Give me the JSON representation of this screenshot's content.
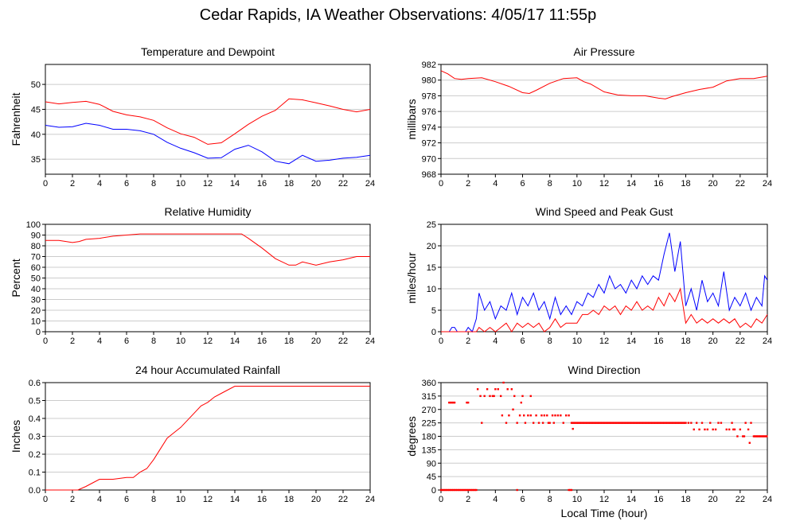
{
  "page": {
    "title": "Cedar Rapids, IA Weather Observations: 4/05/17 11:55p"
  },
  "colors": {
    "red": "#ff0000",
    "blue": "#0000ff",
    "grid": "#cccccc",
    "frame": "#000000"
  },
  "chart_data": [
    {
      "id": "temp",
      "type": "line",
      "title": "Temperature and Dewpoint",
      "ylabel": "Fahrenheit",
      "xlabel": "",
      "xlim": [
        0,
        24
      ],
      "ylim": [
        32,
        54
      ],
      "xticks": [
        0,
        2,
        4,
        6,
        8,
        10,
        12,
        14,
        16,
        18,
        20,
        22,
        24
      ],
      "yticks": [
        35,
        40,
        45,
        50
      ],
      "grid": true,
      "series": [
        {
          "color": "#ff0000",
          "style": "line",
          "x": [
            0,
            1,
            2,
            3,
            4,
            5,
            6,
            7,
            8,
            9,
            10,
            11,
            12,
            13,
            14,
            15,
            16,
            17,
            18,
            19,
            20,
            21,
            22,
            23,
            24
          ],
          "y": [
            46.5,
            46.1,
            46.4,
            46.6,
            46.0,
            44.6,
            43.9,
            43.5,
            42.8,
            41.3,
            40.1,
            39.4,
            38.0,
            38.3,
            40.1,
            42.0,
            43.6,
            44.8,
            47.1,
            46.9,
            46.3,
            45.7,
            45.0,
            44.5,
            45.0
          ]
        },
        {
          "color": "#0000ff",
          "style": "line",
          "x": [
            0,
            1,
            2,
            3,
            4,
            5,
            6,
            7,
            8,
            9,
            10,
            11,
            12,
            13,
            14,
            15,
            16,
            17,
            18,
            19,
            20,
            21,
            22,
            23,
            24
          ],
          "y": [
            41.8,
            41.4,
            41.5,
            42.2,
            41.8,
            41.0,
            41.0,
            40.7,
            40.0,
            38.4,
            37.2,
            36.3,
            35.2,
            35.3,
            37.0,
            37.8,
            36.5,
            34.6,
            34.1,
            35.8,
            34.6,
            34.8,
            35.2,
            35.4,
            35.8
          ]
        }
      ]
    },
    {
      "id": "pressure",
      "type": "line",
      "title": "Air Pressure",
      "ylabel": "millibars",
      "xlabel": "",
      "xlim": [
        0,
        24
      ],
      "ylim": [
        968,
        982
      ],
      "xticks": [
        0,
        2,
        4,
        6,
        8,
        10,
        12,
        14,
        16,
        18,
        20,
        22,
        24
      ],
      "yticks": [
        968,
        970,
        972,
        974,
        976,
        978,
        980,
        982
      ],
      "grid": true,
      "series": [
        {
          "color": "#ff0000",
          "style": "line",
          "x": [
            0,
            0.5,
            1,
            1.5,
            2,
            3,
            4,
            5,
            6,
            6.5,
            7,
            8,
            9,
            10,
            10.5,
            11,
            12,
            13,
            14,
            15,
            16,
            16.5,
            17,
            18,
            19,
            20,
            21,
            22,
            23,
            24
          ],
          "y": [
            981.2,
            980.8,
            980.2,
            980.1,
            980.2,
            980.3,
            979.8,
            979.2,
            978.4,
            978.3,
            978.7,
            979.6,
            980.2,
            980.3,
            979.8,
            979.5,
            978.5,
            978.1,
            978.0,
            978.0,
            977.7,
            977.6,
            977.9,
            978.4,
            978.8,
            979.1,
            979.9,
            980.2,
            980.2,
            980.5
          ]
        }
      ]
    },
    {
      "id": "humidity",
      "type": "line",
      "title": "Relative Humidity",
      "ylabel": "Percent",
      "xlabel": "",
      "xlim": [
        0,
        24
      ],
      "ylim": [
        0,
        100
      ],
      "xticks": [
        0,
        2,
        4,
        6,
        8,
        10,
        12,
        14,
        16,
        18,
        20,
        22,
        24
      ],
      "yticks": [
        0,
        10,
        20,
        30,
        40,
        50,
        60,
        70,
        80,
        90,
        100
      ],
      "grid": true,
      "series": [
        {
          "color": "#ff0000",
          "style": "line",
          "x": [
            0,
            1,
            2,
            2.5,
            3,
            4,
            5,
            6,
            7,
            8,
            9,
            10,
            11,
            12,
            13,
            14,
            14.5,
            15,
            16,
            17,
            18,
            18.5,
            19,
            20,
            21,
            22,
            23,
            24
          ],
          "y": [
            85,
            85,
            83,
            84,
            86,
            87,
            89,
            90,
            91,
            91,
            91,
            91,
            91,
            91,
            91,
            91,
            91,
            87,
            78,
            68,
            62,
            62,
            65,
            62,
            65,
            67,
            70,
            70
          ]
        }
      ]
    },
    {
      "id": "wind",
      "type": "line",
      "title": "Wind Speed and Peak Gust",
      "ylabel": "miles/hour",
      "xlabel": "",
      "xlim": [
        0,
        24
      ],
      "ylim": [
        0,
        25
      ],
      "xticks": [
        0,
        2,
        4,
        6,
        8,
        10,
        12,
        14,
        16,
        18,
        20,
        22,
        24
      ],
      "yticks": [
        0,
        5,
        10,
        15,
        20,
        25
      ],
      "grid": true,
      "series": [
        {
          "color": "#0000ff",
          "style": "line",
          "x": [
            0,
            0.6,
            0.8,
            1,
            1.2,
            1.4,
            1.8,
            2,
            2.3,
            2.6,
            2.8,
            3.2,
            3.6,
            4,
            4.4,
            4.8,
            5.2,
            5.6,
            6,
            6.4,
            6.8,
            7.2,
            7.6,
            8,
            8.4,
            8.8,
            9.2,
            9.6,
            10,
            10.4,
            10.8,
            11.2,
            11.6,
            12,
            12.4,
            12.8,
            13.2,
            13.6,
            14,
            14.4,
            14.8,
            15.2,
            15.6,
            16,
            16.4,
            16.8,
            17.2,
            17.6,
            18,
            18.4,
            18.8,
            19.2,
            19.6,
            20,
            20.4,
            20.8,
            21.2,
            21.6,
            22,
            22.4,
            22.8,
            23.2,
            23.6,
            23.8,
            24
          ],
          "y": [
            0,
            0,
            1,
            1,
            0,
            0,
            0,
            1,
            0,
            3,
            9,
            5,
            7,
            3,
            6,
            5,
            9,
            4,
            8,
            6,
            9,
            5,
            7,
            3,
            8,
            4,
            6,
            4,
            7,
            6,
            9,
            8,
            11,
            9,
            13,
            10,
            11,
            9,
            12,
            10,
            13,
            11,
            13,
            12,
            18,
            23,
            14,
            21,
            6,
            10,
            5,
            12,
            7,
            9,
            6,
            14,
            5,
            8,
            6,
            9,
            5,
            8,
            6,
            13,
            12
          ]
        },
        {
          "color": "#ff0000",
          "style": "line",
          "x": [
            0,
            2.6,
            2.8,
            3.2,
            3.6,
            4,
            4.4,
            4.8,
            5.2,
            5.6,
            6,
            6.4,
            6.8,
            7.2,
            7.6,
            8,
            8.4,
            8.8,
            9.2,
            9.6,
            10,
            10.4,
            10.8,
            11.2,
            11.6,
            12,
            12.4,
            12.8,
            13.2,
            13.6,
            14,
            14.4,
            14.8,
            15.2,
            15.6,
            16,
            16.4,
            16.8,
            17.2,
            17.6,
            18,
            18.4,
            18.8,
            19.2,
            19.6,
            20,
            20.4,
            20.8,
            21.2,
            21.6,
            22,
            22.4,
            22.8,
            23.2,
            23.6,
            24
          ],
          "y": [
            0,
            0,
            1,
            0,
            1,
            0,
            1,
            2,
            0,
            2,
            1,
            2,
            1,
            2,
            0,
            1,
            3,
            1,
            2,
            2,
            2,
            4,
            4,
            5,
            4,
            6,
            5,
            6,
            4,
            6,
            5,
            7,
            5,
            6,
            5,
            8,
            6,
            9,
            7,
            10,
            2,
            4,
            2,
            3,
            2,
            3,
            2,
            3,
            2,
            3,
            1,
            2,
            1,
            3,
            2,
            4
          ]
        }
      ]
    },
    {
      "id": "rain",
      "type": "line",
      "title": "24 hour Accumulated Rainfall",
      "ylabel": "Inches",
      "xlabel": "",
      "xlim": [
        0,
        24
      ],
      "ylim": [
        0,
        0.6
      ],
      "xticks": [
        0,
        2,
        4,
        6,
        8,
        10,
        12,
        14,
        16,
        18,
        20,
        22,
        24
      ],
      "yticks": [
        0.0,
        0.1,
        0.2,
        0.3,
        0.4,
        0.5,
        0.6
      ],
      "ytick_labels": [
        "0.0",
        "0.1",
        "0.2",
        "0.3",
        "0.4",
        "0.5",
        "0.6"
      ],
      "grid": true,
      "series": [
        {
          "color": "#ff0000",
          "style": "line",
          "x": [
            0,
            2.4,
            3,
            3.5,
            4,
            5,
            6,
            6.5,
            7,
            7.5,
            8,
            8.5,
            9,
            9.5,
            10,
            10.5,
            11,
            11.5,
            12,
            12.5,
            13,
            13.5,
            14,
            14.3,
            15,
            16,
            18,
            20,
            22,
            24
          ],
          "y": [
            0,
            0,
            0.02,
            0.04,
            0.06,
            0.06,
            0.07,
            0.07,
            0.1,
            0.12,
            0.17,
            0.23,
            0.29,
            0.32,
            0.35,
            0.39,
            0.43,
            0.47,
            0.49,
            0.52,
            0.54,
            0.56,
            0.58,
            0.58,
            0.58,
            0.58,
            0.58,
            0.58,
            0.58,
            0.58
          ]
        }
      ]
    },
    {
      "id": "direction",
      "type": "scatter",
      "title": "Wind Direction",
      "ylabel": "degrees",
      "xlabel": "Local Time (hour)",
      "xlim": [
        0,
        24
      ],
      "ylim": [
        0,
        360
      ],
      "xticks": [
        0,
        2,
        4,
        6,
        8,
        10,
        12,
        14,
        16,
        18,
        20,
        22,
        24
      ],
      "yticks": [
        0,
        45,
        90,
        135,
        180,
        225,
        270,
        315,
        360
      ],
      "grid": true,
      "series": [
        {
          "color": "#ff0000",
          "style": "points",
          "segments": [
            {
              "y": 0,
              "x_from": 0,
              "x_to": 2.6,
              "step": 0.1
            },
            {
              "y": 0,
              "x_from": 9.4,
              "x_to": 9.6,
              "step": 0.1
            },
            {
              "y": 0,
              "x_from": 5.6,
              "x_to": 5.6,
              "step": 0.1
            },
            {
              "y": 293,
              "x_from": 0.6,
              "x_to": 1.0,
              "step": 0.1
            },
            {
              "y": 293,
              "x_from": 1.9,
              "x_to": 2.0,
              "step": 0.1
            },
            {
              "y": 225,
              "x_from": 9.6,
              "x_to": 18.0,
              "step": 0.08
            },
            {
              "y": 180,
              "x_from": 23.0,
              "x_to": 24.0,
              "step": 0.08
            }
          ],
          "x": [
            2.7,
            2.9,
            3.0,
            3.2,
            3.4,
            3.6,
            3.8,
            4.0,
            4.2,
            4.4,
            4.5,
            4.6,
            4.8,
            5.0,
            5.2,
            5.4,
            5.6,
            5.8,
            6.0,
            6.2,
            6.4,
            6.6,
            6.8,
            7.0,
            7.2,
            7.4,
            7.5,
            7.6,
            7.8,
            8.0,
            8.2,
            8.4,
            8.6,
            8.8,
            9.0,
            9.2,
            9.4,
            9.7,
            18.2,
            18.4,
            18.6,
            19.0,
            19.2,
            19.4,
            19.6,
            19.8,
            20.0,
            20.2,
            20.6,
            21.0,
            21.2,
            21.4,
            21.6,
            21.8,
            22.0,
            22.2,
            22.4,
            22.6,
            22.8,
            3.9,
            4.9,
            5.3,
            5.9,
            6.1,
            6.6,
            7.9,
            8.3,
            18.8,
            20.4,
            21.5,
            22.3,
            22.7
          ],
          "y": [
            338,
            315,
            225,
            315,
            338,
            315,
            315,
            338,
            338,
            315,
            250,
            360,
            225,
            250,
            338,
            315,
            225,
            250,
            315,
            225,
            250,
            250,
            225,
            250,
            225,
            250,
            225,
            250,
            250,
            225,
            250,
            250,
            250,
            250,
            225,
            250,
            250,
            205,
            225,
            225,
            203,
            203,
            225,
            203,
            203,
            225,
            203,
            203,
            225,
            203,
            203,
            225,
            203,
            180,
            203,
            180,
            225,
            203,
            225,
            315,
            338,
            270,
            293,
            250,
            315,
            225,
            225,
            225,
            225,
            203,
            180,
            158
          ]
        }
      ]
    }
  ]
}
